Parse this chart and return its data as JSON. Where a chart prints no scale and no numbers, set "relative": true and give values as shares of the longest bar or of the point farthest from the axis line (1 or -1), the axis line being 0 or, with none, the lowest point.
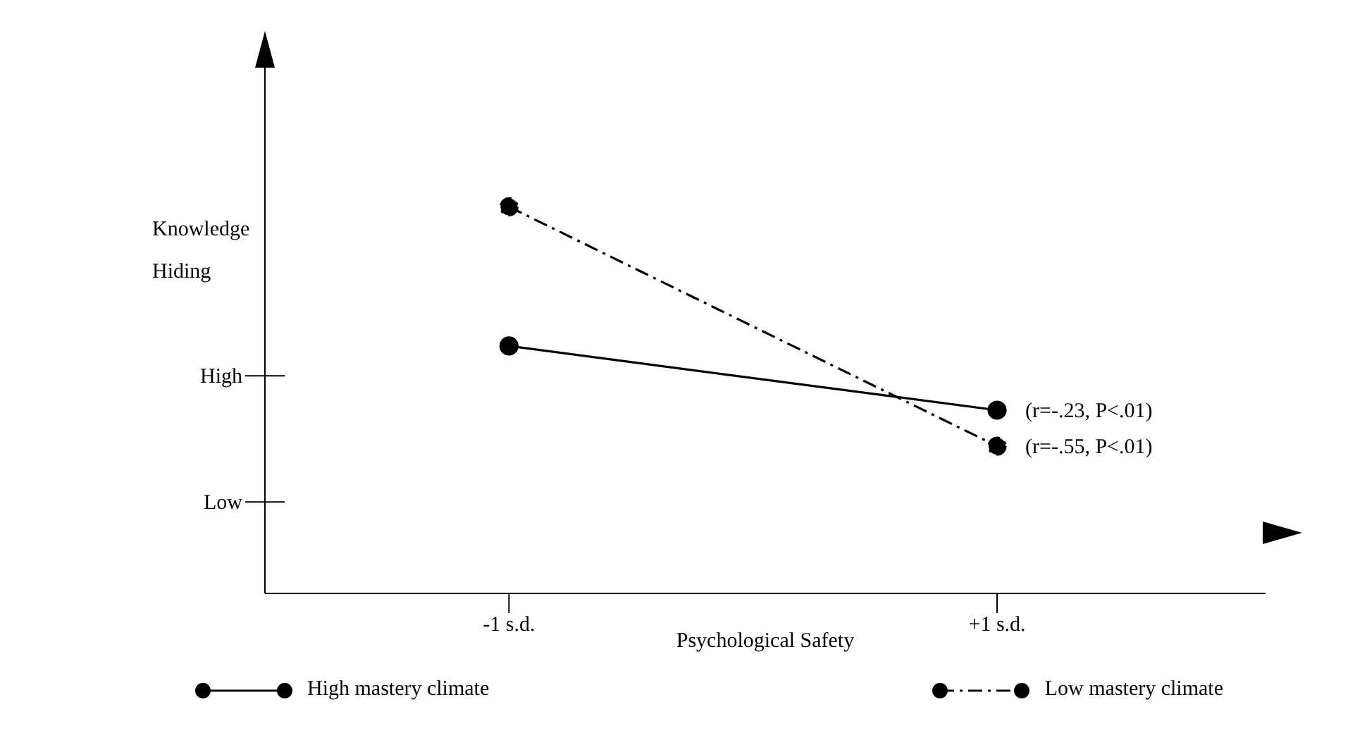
{
  "chart_data": {
    "type": "line",
    "xlabel": "Psychological Safety",
    "ylabel": "Knowledge Hiding",
    "relative": true,
    "x": [
      -1,
      1
    ],
    "series": [
      {
        "name": "High mastery climate",
        "color": "#000000",
        "values": [
          0.64,
          0.474
        ],
        "line_style": "solid"
      },
      {
        "name": "Low mastery climate",
        "color": "#000000",
        "values": [
          1,
          0.381
        ],
        "line_style": "dashed"
      }
    ],
    "xlim": [
      -2,
      2.1
    ],
    "xticks": [
      {
        "value": -1,
        "label": "-1 s.d."
      },
      {
        "value": 1,
        "label": "+1 s.d."
      }
    ],
    "annotations": [
      "High",
      "Low",
      {
        "text": "(r=-.23, P<.01)",
        "x": 1,
        "y": 0.474
      },
      {
        "text": "(r=-.55, P<.01)",
        "x": 1,
        "y": 0.381
      }
    ],
    "marker": "circle",
    "legend": "bottom",
    "grid": false
  }
}
